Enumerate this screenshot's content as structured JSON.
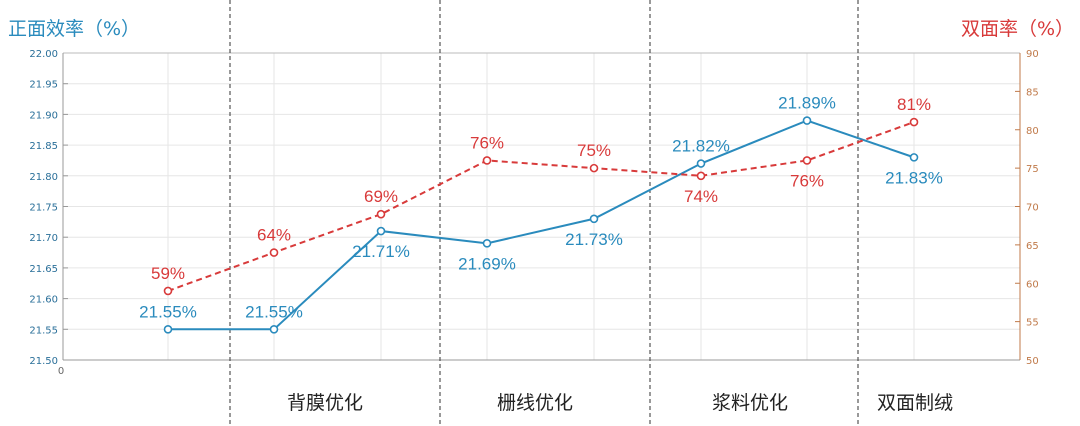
{
  "chart_data": {
    "type": "line",
    "y_left_title": "正面效率（%）",
    "y_right_title": "双面率（%）",
    "origin_label": "0",
    "x_points": [
      1,
      2,
      3,
      4,
      5,
      6,
      7,
      8
    ],
    "ylim_left": [
      21.5,
      22.0
    ],
    "ylim_right": [
      50,
      90
    ],
    "left_ticks": [
      "21.50",
      "21.55",
      "21.60",
      "21.65",
      "21.70",
      "21.75",
      "21.80",
      "21.85",
      "21.90",
      "21.95",
      "22.00"
    ],
    "right_ticks": [
      "50",
      "55",
      "60",
      "65",
      "70",
      "75",
      "80",
      "85",
      "90"
    ],
    "grid": true,
    "series": [
      {
        "axis": "left",
        "color": "#2a8bbd",
        "style": "solid",
        "values": [
          21.55,
          21.55,
          21.71,
          21.69,
          21.73,
          21.82,
          21.89,
          21.83
        ],
        "labels": [
          "21.55%",
          "21.55%",
          "21.71%",
          "21.69%",
          "21.73%",
          "21.82%",
          "21.89%",
          "21.83%"
        ]
      },
      {
        "axis": "right",
        "color": "#d83a3a",
        "style": "dashed",
        "values": [
          59,
          64,
          69,
          76,
          75,
          74,
          76,
          81
        ],
        "labels": [
          "59%",
          "64%",
          "69%",
          "76%",
          "75%",
          "74%",
          "76%",
          "81%"
        ]
      }
    ],
    "stages": [
      "背膜优化",
      "栅线优化",
      "浆料优化",
      "双面制绒"
    ]
  }
}
